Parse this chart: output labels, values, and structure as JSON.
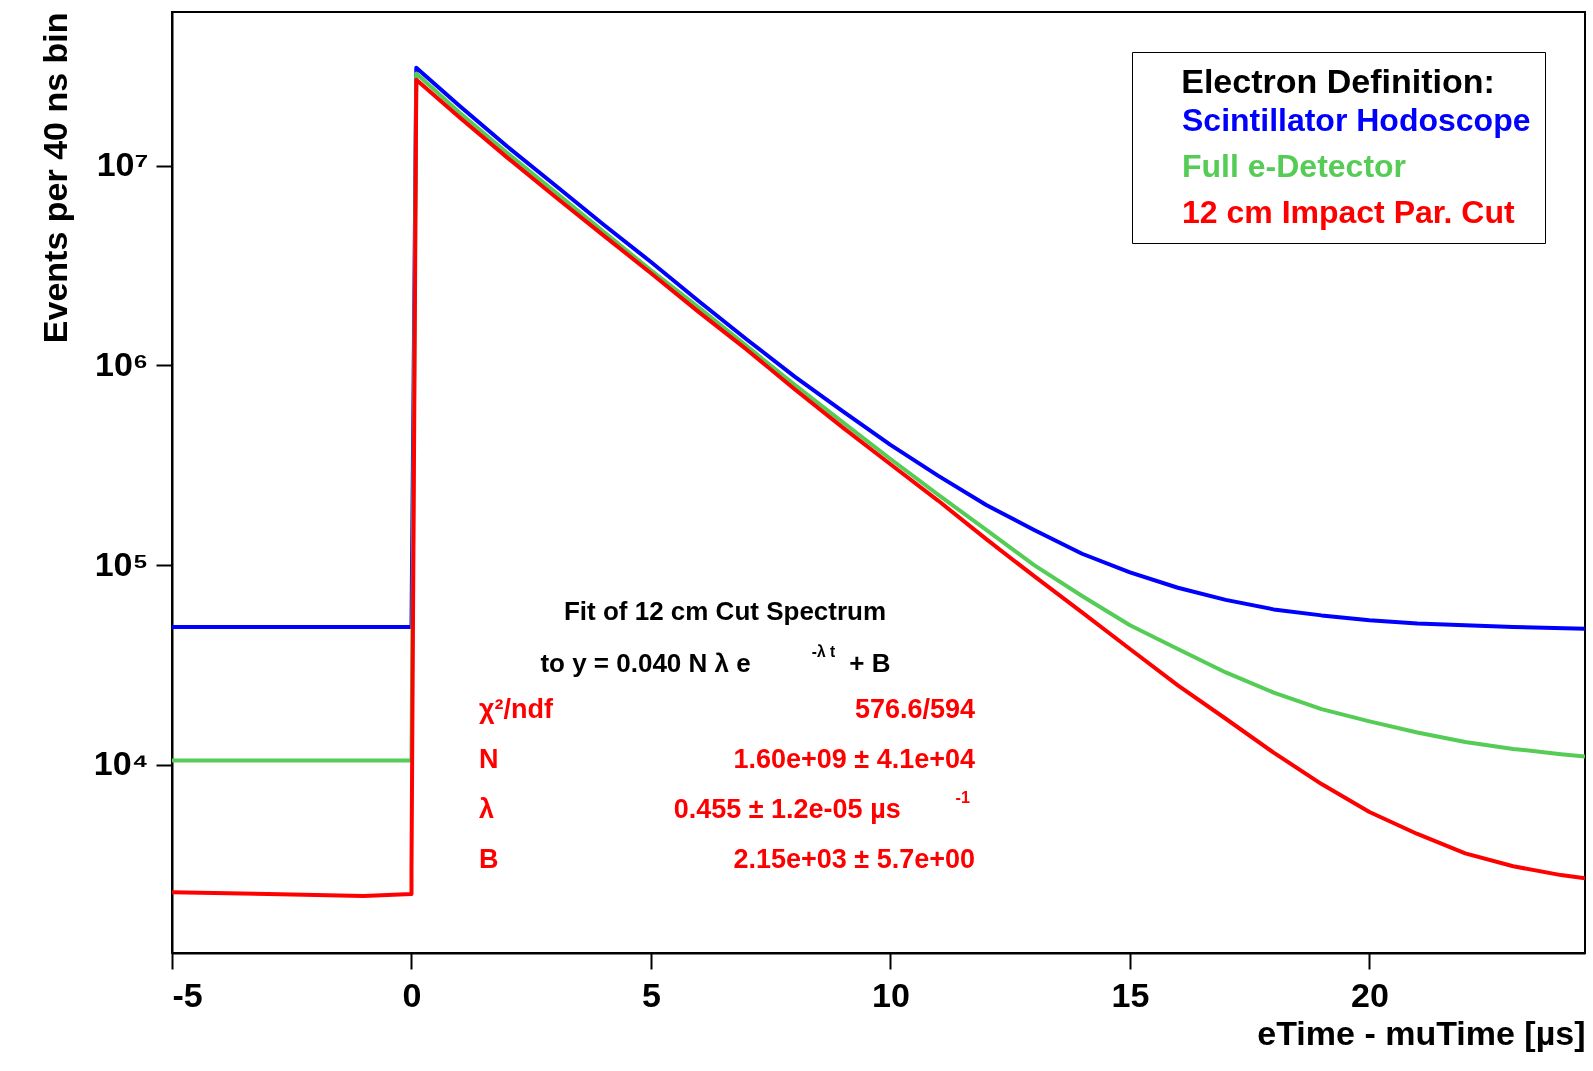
{
  "chart_data": {
    "type": "line",
    "xlabel": "eTime - muTime [µs]",
    "ylabel": "Events per 40 ns bin",
    "legend_title": "Electron Definition:",
    "xlim": [
      -5,
      24.5
    ],
    "xticks": [
      -5,
      0,
      5,
      10,
      15,
      20
    ],
    "ylim": [
      1140,
      59000000
    ],
    "log": true,
    "yticks": [
      {
        "value": 10000,
        "label": "10⁴"
      },
      {
        "value": 100000,
        "label": "10⁵"
      },
      {
        "value": 1000000,
        "label": "10⁶"
      },
      {
        "value": 10000000,
        "label": "10⁷"
      }
    ],
    "grid": false,
    "legend": "top right",
    "line_style": "solid",
    "marker": "none",
    "series": [
      {
        "name": "Scintillator Hodoscope",
        "color": "#0000ff",
        "x": [
          -5,
          -3,
          -1,
          0,
          0.1,
          1,
          2,
          3,
          4,
          5,
          6,
          7,
          8,
          9,
          10,
          11,
          12,
          13,
          14,
          15,
          16,
          17,
          18,
          19,
          20,
          21,
          22,
          23,
          24.5
        ],
        "values": [
          49000,
          49000,
          49000,
          49000,
          31000000,
          20000000,
          12500000,
          8000000,
          5100000,
          3300000,
          2100000,
          1350000,
          880000,
          590000,
          400000,
          280000,
          200000,
          150000,
          114000,
          92000,
          77000,
          67000,
          60000,
          56000,
          53000,
          51000,
          50000,
          49000,
          48000
        ]
      },
      {
        "name": "Full e-Detector",
        "color": "#55cc55",
        "x": [
          -5,
          -3,
          -1,
          0,
          0.1,
          1,
          2,
          3,
          4,
          5,
          6,
          7,
          8,
          9,
          10,
          11,
          12,
          13,
          14,
          15,
          16,
          17,
          18,
          19,
          20,
          21,
          22,
          23,
          24,
          24.5
        ],
        "values": [
          10500,
          10500,
          10500,
          10500,
          29000000,
          18500000,
          11600000,
          7400000,
          4700000,
          3000000,
          1950000,
          1250000,
          800000,
          520000,
          340000,
          225000,
          150000,
          100000,
          70000,
          50000,
          38000,
          29000,
          23000,
          19000,
          16500,
          14500,
          13000,
          12000,
          11300,
          11000
        ]
      },
      {
        "name": "12 cm Impact Par. Cut",
        "color": "#ff0000",
        "x": [
          -5,
          -3,
          -1,
          0,
          0,
          0.1,
          1,
          2,
          3,
          4,
          5,
          6,
          7,
          8,
          9,
          10,
          11,
          12,
          13,
          14,
          15,
          16,
          17,
          18,
          19,
          20,
          21,
          22,
          23,
          24,
          24.5
        ],
        "values": [
          2300,
          2250,
          2200,
          2250,
          3000,
          27000000,
          17500000,
          11000000,
          7000000,
          4500000,
          2900000,
          1850000,
          1200000,
          760000,
          490000,
          320000,
          210000,
          135000,
          88000,
          58000,
          38000,
          25000,
          17000,
          11500,
          8000,
          5800,
          4500,
          3600,
          3100,
          2800,
          2700
        ]
      }
    ],
    "annotations": [
      "Fit of 12 cm Cut Spectrum",
      "to y = 0.040 N λ e$^{-λ t}$ + B",
      "χ²/ndf",
      "576.6/594",
      "N",
      "1.60e+09 ± 4.1e+04",
      "λ",
      "0.455 ± 1.2e-05 µs$^{-1}$",
      "B",
      "2.15e+03 ± 5.7e+00"
    ]
  }
}
